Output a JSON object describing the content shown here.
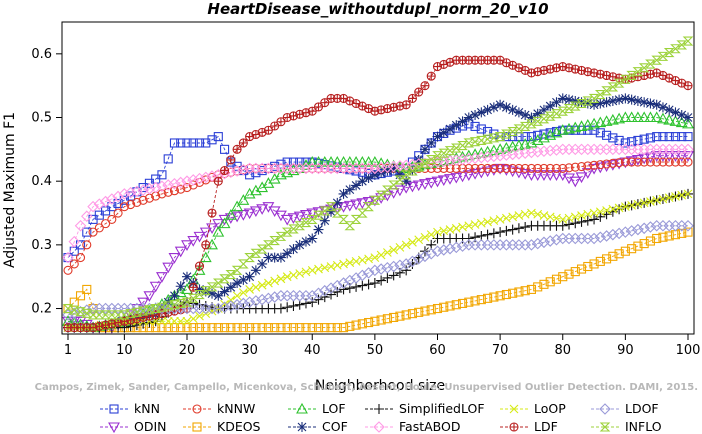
{
  "chart_data": {
    "type": "line",
    "title": "HeartDisease_withoutdupl_norm_20_v10",
    "xlabel": "Neighborhood size",
    "ylabel": "Adjusted Maximum F1",
    "xlim": [
      1,
      100
    ],
    "ylim": [
      0.16,
      0.65
    ],
    "x_ticks": [
      1,
      10,
      20,
      30,
      40,
      50,
      60,
      70,
      80,
      90,
      100
    ],
    "y_ticks": [
      0.2,
      0.3,
      0.4,
      0.5,
      0.6
    ],
    "x_tick_labels": [
      "1",
      "10",
      "20",
      "30",
      "40",
      "50",
      "60",
      "70",
      "80",
      "90",
      "100"
    ],
    "y_tick_labels": [
      "0.2",
      "0.3",
      "0.4",
      "0.5",
      "0.6"
    ],
    "legend_position": "bottom",
    "watermark": "Campos, Zimek, Sander, Campello, Micenkova, Schubert, Assent, Houle: Unsupervised Outlier Detection. DAMI, 2015.",
    "series": [
      {
        "name": "kNN",
        "color": "#2b3fd6",
        "marker": "square",
        "x": [
          1,
          3,
          5,
          8,
          10,
          13,
          16,
          18,
          20,
          23,
          25,
          27,
          30,
          33,
          36,
          40,
          45,
          50,
          55,
          60,
          62,
          65,
          70,
          75,
          80,
          85,
          90,
          95,
          100
        ],
        "y": [
          0.28,
          0.3,
          0.34,
          0.36,
          0.37,
          0.39,
          0.41,
          0.46,
          0.46,
          0.46,
          0.47,
          0.43,
          0.41,
          0.42,
          0.43,
          0.43,
          0.42,
          0.41,
          0.42,
          0.47,
          0.48,
          0.49,
          0.47,
          0.47,
          0.48,
          0.48,
          0.46,
          0.47,
          0.47
        ]
      },
      {
        "name": "ODIN",
        "color": "#9a2fd0",
        "marker": "triangle-down",
        "x": [
          1,
          3,
          5,
          8,
          10,
          12,
          14,
          16,
          18,
          20,
          23,
          26,
          30,
          33,
          36,
          40,
          45,
          50,
          55,
          60,
          65,
          70,
          75,
          80,
          82,
          85,
          90,
          95,
          100
        ],
        "y": [
          0.18,
          0.18,
          0.17,
          0.17,
          0.18,
          0.2,
          0.22,
          0.25,
          0.28,
          0.3,
          0.32,
          0.34,
          0.35,
          0.36,
          0.34,
          0.35,
          0.36,
          0.37,
          0.39,
          0.4,
          0.41,
          0.42,
          0.41,
          0.41,
          0.4,
          0.42,
          0.43,
          0.44,
          0.44
        ]
      },
      {
        "name": "kNNW",
        "color": "#e03a2a",
        "marker": "circle",
        "x": [
          1,
          3,
          5,
          8,
          10,
          13,
          16,
          20,
          25,
          30,
          35,
          40,
          50,
          60,
          70,
          80,
          90,
          100
        ],
        "y": [
          0.26,
          0.28,
          0.32,
          0.34,
          0.36,
          0.37,
          0.38,
          0.39,
          0.41,
          0.42,
          0.42,
          0.42,
          0.42,
          0.42,
          0.42,
          0.42,
          0.43,
          0.43
        ]
      },
      {
        "name": "KDEOS",
        "color": "#f2a600",
        "marker": "square",
        "x": [
          1,
          4,
          6,
          10,
          20,
          30,
          40,
          45,
          50,
          55,
          60,
          65,
          70,
          75,
          80,
          85,
          90,
          95,
          100
        ],
        "y": [
          0.2,
          0.23,
          0.17,
          0.17,
          0.17,
          0.17,
          0.17,
          0.17,
          0.18,
          0.19,
          0.2,
          0.21,
          0.22,
          0.23,
          0.25,
          0.27,
          0.29,
          0.31,
          0.32
        ]
      },
      {
        "name": "LOF",
        "color": "#2ec22e",
        "marker": "triangle",
        "x": [
          1,
          5,
          10,
          15,
          18,
          20,
          22,
          25,
          28,
          30,
          32,
          35,
          38,
          40,
          45,
          50,
          55,
          60,
          65,
          70,
          75,
          80,
          85,
          90,
          95,
          100
        ],
        "y": [
          0.18,
          0.17,
          0.18,
          0.2,
          0.22,
          0.23,
          0.26,
          0.32,
          0.36,
          0.38,
          0.39,
          0.41,
          0.42,
          0.43,
          0.43,
          0.43,
          0.42,
          0.43,
          0.44,
          0.45,
          0.46,
          0.48,
          0.49,
          0.5,
          0.5,
          0.49
        ]
      },
      {
        "name": "COF",
        "color": "#1a2e7a",
        "marker": "star",
        "x": [
          1,
          5,
          10,
          15,
          18,
          20,
          22,
          25,
          28,
          30,
          33,
          35,
          38,
          40,
          45,
          48,
          50,
          53,
          55,
          58,
          60,
          65,
          70,
          75,
          80,
          85,
          90,
          95,
          100
        ],
        "y": [
          0.17,
          0.17,
          0.18,
          0.19,
          0.22,
          0.25,
          0.23,
          0.22,
          0.24,
          0.25,
          0.28,
          0.28,
          0.3,
          0.31,
          0.38,
          0.4,
          0.41,
          0.42,
          0.4,
          0.45,
          0.47,
          0.5,
          0.52,
          0.5,
          0.53,
          0.52,
          0.53,
          0.52,
          0.5
        ]
      },
      {
        "name": "SimplifiedLOF",
        "color": "#111111",
        "marker": "plus",
        "x": [
          1,
          5,
          10,
          15,
          18,
          20,
          25,
          30,
          35,
          40,
          45,
          50,
          55,
          58,
          60,
          65,
          70,
          75,
          80,
          85,
          90,
          95,
          100
        ],
        "y": [
          0.17,
          0.17,
          0.17,
          0.18,
          0.2,
          0.21,
          0.2,
          0.2,
          0.2,
          0.21,
          0.23,
          0.24,
          0.26,
          0.29,
          0.31,
          0.31,
          0.32,
          0.33,
          0.33,
          0.34,
          0.36,
          0.37,
          0.38
        ]
      },
      {
        "name": "FastABOD",
        "color": "#ff9be6",
        "marker": "diamond",
        "x": [
          1,
          3,
          5,
          10,
          15,
          20,
          25,
          30,
          40,
          50,
          60,
          70,
          80,
          90,
          100
        ],
        "y": [
          0.28,
          0.33,
          0.36,
          0.38,
          0.39,
          0.4,
          0.41,
          0.42,
          0.42,
          0.42,
          0.43,
          0.44,
          0.45,
          0.45,
          0.45
        ]
      },
      {
        "name": "LoOP",
        "color": "#d6ea16",
        "marker": "x",
        "x": [
          1,
          5,
          10,
          15,
          20,
          25,
          28,
          30,
          33,
          36,
          40,
          45,
          50,
          55,
          60,
          65,
          70,
          75,
          80,
          85,
          90,
          95,
          100
        ],
        "y": [
          0.17,
          0.17,
          0.18,
          0.18,
          0.18,
          0.2,
          0.22,
          0.23,
          0.24,
          0.25,
          0.26,
          0.27,
          0.28,
          0.3,
          0.32,
          0.33,
          0.34,
          0.35,
          0.34,
          0.35,
          0.36,
          0.37,
          0.38
        ]
      },
      {
        "name": "LDF",
        "color": "#b82020",
        "marker": "circle-plus",
        "x": [
          1,
          5,
          10,
          15,
          20,
          23,
          25,
          28,
          30,
          33,
          36,
          40,
          43,
          45,
          50,
          55,
          58,
          60,
          63,
          65,
          70,
          75,
          80,
          85,
          90,
          95,
          100
        ],
        "y": [
          0.17,
          0.17,
          0.18,
          0.19,
          0.2,
          0.3,
          0.4,
          0.45,
          0.47,
          0.48,
          0.5,
          0.51,
          0.53,
          0.53,
          0.51,
          0.52,
          0.55,
          0.58,
          0.59,
          0.59,
          0.59,
          0.57,
          0.58,
          0.57,
          0.56,
          0.57,
          0.55
        ]
      },
      {
        "name": "LDOF",
        "color": "#9a9ad8",
        "marker": "diamond",
        "x": [
          1,
          5,
          10,
          15,
          20,
          25,
          30,
          35,
          40,
          45,
          50,
          55,
          60,
          65,
          70,
          75,
          80,
          85,
          90,
          95,
          100
        ],
        "y": [
          0.19,
          0.2,
          0.2,
          0.2,
          0.2,
          0.2,
          0.21,
          0.22,
          0.22,
          0.24,
          0.26,
          0.27,
          0.29,
          0.3,
          0.3,
          0.3,
          0.31,
          0.31,
          0.32,
          0.33,
          0.33
        ]
      },
      {
        "name": "INFLO",
        "color": "#9cd23a",
        "marker": "hourglass",
        "x": [
          1,
          5,
          10,
          15,
          20,
          25,
          28,
          30,
          33,
          36,
          40,
          43,
          46,
          50,
          55,
          60,
          65,
          70,
          75,
          80,
          85,
          90,
          95,
          100
        ],
        "y": [
          0.2,
          0.19,
          0.19,
          0.2,
          0.21,
          0.24,
          0.26,
          0.28,
          0.3,
          0.32,
          0.34,
          0.36,
          0.33,
          0.37,
          0.41,
          0.44,
          0.46,
          0.47,
          0.49,
          0.51,
          0.53,
          0.56,
          0.59,
          0.62
        ]
      }
    ]
  }
}
